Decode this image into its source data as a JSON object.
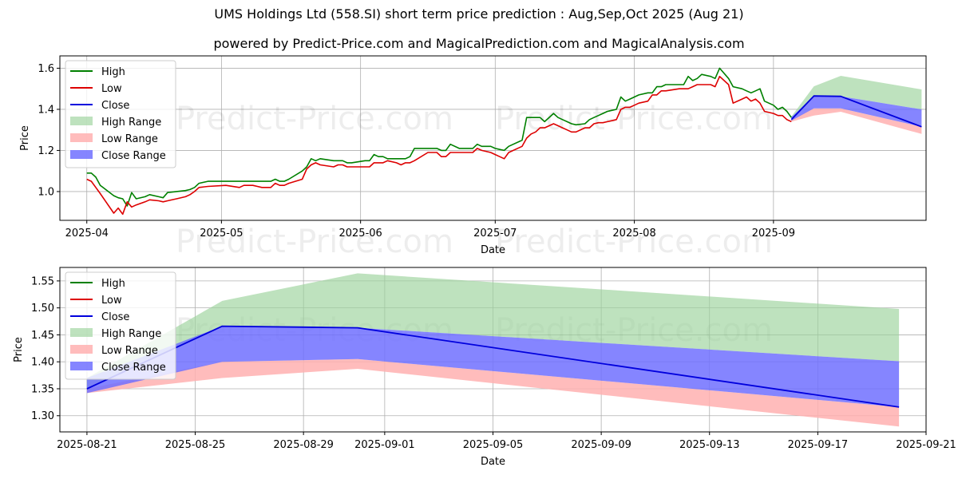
{
  "title": "UMS Holdings Ltd (558.SI) short term price prediction : Aug,Sep,Oct 2025 (Aug 21)",
  "subtitle": "powered by Predict-Price.com and MagicalPrediction.com and MagicalAnalysis.com",
  "watermark": "Predict-Price.com",
  "colors": {
    "high": "#008000",
    "low": "#dd0000",
    "close": "#0000dd",
    "high_range": "#9bd39b",
    "low_range": "#ffb0b0",
    "close_range": "#7070ff",
    "grid": "#b0b0b0"
  },
  "chart_data": [
    {
      "type": "line",
      "name": "history-and-forecast",
      "xlabel": "Date",
      "ylabel": "Price",
      "grid": true,
      "legend_position": "top-left",
      "xlim": [
        "2025-03-26",
        "2025-10-05"
      ],
      "ylim": [
        0.86,
        1.66
      ],
      "x_ticks": [
        "2025-04-01",
        "2025-05-01",
        "2025-06-01",
        "2025-07-01",
        "2025-08-01",
        "2025-09-01"
      ],
      "x_tick_labels": [
        "2025-04",
        "2025-05",
        "2025-06",
        "2025-07",
        "2025-08",
        "2025-09"
      ],
      "y_ticks": [
        1.0,
        1.2,
        1.4,
        1.6
      ],
      "y_tick_labels": [
        "1.0",
        "1.2",
        "1.4",
        "1.6"
      ],
      "legend": [
        "High",
        "Low",
        "Close",
        "High Range",
        "Low Range",
        "Close Range"
      ],
      "high": [
        [
          "2025-04-01",
          1.09
        ],
        [
          "2025-04-02",
          1.09
        ],
        [
          "2025-04-03",
          1.07
        ],
        [
          "2025-04-04",
          1.03
        ],
        [
          "2025-04-07",
          0.98
        ],
        [
          "2025-04-08",
          0.97
        ],
        [
          "2025-04-09",
          0.965
        ],
        [
          "2025-04-10",
          0.93
        ],
        [
          "2025-04-11",
          0.995
        ],
        [
          "2025-04-12",
          0.965
        ],
        [
          "2025-04-14",
          0.975
        ],
        [
          "2025-04-15",
          0.985
        ],
        [
          "2025-04-17",
          0.975
        ],
        [
          "2025-04-18",
          0.97
        ],
        [
          "2025-04-19",
          0.995
        ],
        [
          "2025-04-21",
          1.0
        ],
        [
          "2025-04-23",
          1.005
        ],
        [
          "2025-04-24",
          1.01
        ],
        [
          "2025-04-25",
          1.02
        ],
        [
          "2025-04-26",
          1.04
        ],
        [
          "2025-04-28",
          1.05
        ],
        [
          "2025-05-02",
          1.05
        ],
        [
          "2025-05-05",
          1.05
        ],
        [
          "2025-05-06",
          1.05
        ],
        [
          "2025-05-07",
          1.05
        ],
        [
          "2025-05-08",
          1.05
        ],
        [
          "2025-05-09",
          1.05
        ],
        [
          "2025-05-10",
          1.05
        ],
        [
          "2025-05-12",
          1.05
        ],
        [
          "2025-05-13",
          1.06
        ],
        [
          "2025-05-14",
          1.05
        ],
        [
          "2025-05-15",
          1.05
        ],
        [
          "2025-05-16",
          1.06
        ],
        [
          "2025-05-19",
          1.1
        ],
        [
          "2025-05-20",
          1.12
        ],
        [
          "2025-05-21",
          1.16
        ],
        [
          "2025-05-22",
          1.15
        ],
        [
          "2025-05-23",
          1.16
        ],
        [
          "2025-05-26",
          1.15
        ],
        [
          "2025-05-27",
          1.15
        ],
        [
          "2025-05-28",
          1.15
        ],
        [
          "2025-05-29",
          1.14
        ],
        [
          "2025-05-30",
          1.14
        ],
        [
          "2025-06-02",
          1.15
        ],
        [
          "2025-06-03",
          1.15
        ],
        [
          "2025-06-04",
          1.18
        ],
        [
          "2025-06-05",
          1.17
        ],
        [
          "2025-06-06",
          1.17
        ],
        [
          "2025-06-07",
          1.16
        ],
        [
          "2025-06-09",
          1.16
        ],
        [
          "2025-06-10",
          1.16
        ],
        [
          "2025-06-11",
          1.16
        ],
        [
          "2025-06-12",
          1.17
        ],
        [
          "2025-06-13",
          1.21
        ],
        [
          "2025-06-16",
          1.21
        ],
        [
          "2025-06-17",
          1.21
        ],
        [
          "2025-06-18",
          1.21
        ],
        [
          "2025-06-19",
          1.2
        ],
        [
          "2025-06-20",
          1.2
        ],
        [
          "2025-06-21",
          1.23
        ],
        [
          "2025-06-23",
          1.21
        ],
        [
          "2025-06-24",
          1.21
        ],
        [
          "2025-06-25",
          1.21
        ],
        [
          "2025-06-26",
          1.21
        ],
        [
          "2025-06-27",
          1.23
        ],
        [
          "2025-06-28",
          1.22
        ],
        [
          "2025-06-30",
          1.22
        ],
        [
          "2025-07-01",
          1.21
        ],
        [
          "2025-07-02",
          1.205
        ],
        [
          "2025-07-03",
          1.2
        ],
        [
          "2025-07-04",
          1.22
        ],
        [
          "2025-07-07",
          1.25
        ],
        [
          "2025-07-08",
          1.36
        ],
        [
          "2025-07-09",
          1.36
        ],
        [
          "2025-07-10",
          1.36
        ],
        [
          "2025-07-11",
          1.36
        ],
        [
          "2025-07-12",
          1.34
        ],
        [
          "2025-07-14",
          1.38
        ],
        [
          "2025-07-15",
          1.36
        ],
        [
          "2025-07-16",
          1.35
        ],
        [
          "2025-07-17",
          1.34
        ],
        [
          "2025-07-18",
          1.33
        ],
        [
          "2025-07-19",
          1.325
        ],
        [
          "2025-07-21",
          1.33
        ],
        [
          "2025-07-22",
          1.35
        ],
        [
          "2025-07-23",
          1.36
        ],
        [
          "2025-07-24",
          1.37
        ],
        [
          "2025-07-25",
          1.38
        ],
        [
          "2025-07-26",
          1.39
        ],
        [
          "2025-07-28",
          1.4
        ],
        [
          "2025-07-29",
          1.46
        ],
        [
          "2025-07-30",
          1.44
        ],
        [
          "2025-07-31",
          1.45
        ],
        [
          "2025-08-01",
          1.46
        ],
        [
          "2025-08-02",
          1.47
        ],
        [
          "2025-08-04",
          1.48
        ],
        [
          "2025-08-05",
          1.48
        ],
        [
          "2025-08-06",
          1.51
        ],
        [
          "2025-08-07",
          1.51
        ],
        [
          "2025-08-08",
          1.52
        ],
        [
          "2025-08-11",
          1.52
        ],
        [
          "2025-08-12",
          1.52
        ],
        [
          "2025-08-13",
          1.56
        ],
        [
          "2025-08-14",
          1.54
        ],
        [
          "2025-08-15",
          1.55
        ],
        [
          "2025-08-16",
          1.57
        ],
        [
          "2025-08-18",
          1.56
        ],
        [
          "2025-08-19",
          1.55
        ],
        [
          "2025-08-20",
          1.6
        ],
        [
          "2025-08-22",
          1.55
        ],
        [
          "2025-08-23",
          1.51
        ],
        [
          "2025-08-25",
          1.5
        ],
        [
          "2025-08-26",
          1.49
        ],
        [
          "2025-08-27",
          1.48
        ],
        [
          "2025-08-28",
          1.49
        ],
        [
          "2025-08-29",
          1.5
        ],
        [
          "2025-08-30",
          1.44
        ],
        [
          "2025-09-01",
          1.42
        ],
        [
          "2025-09-02",
          1.4
        ],
        [
          "2025-09-03",
          1.41
        ],
        [
          "2025-09-04",
          1.39
        ],
        [
          "2025-09-05",
          1.36
        ]
      ],
      "low": [
        [
          "2025-04-01",
          1.06
        ],
        [
          "2025-04-02",
          1.05
        ],
        [
          "2025-04-03",
          1.02
        ],
        [
          "2025-04-04",
          0.99
        ],
        [
          "2025-04-07",
          0.895
        ],
        [
          "2025-04-08",
          0.92
        ],
        [
          "2025-04-09",
          0.89
        ],
        [
          "2025-04-10",
          0.95
        ],
        [
          "2025-04-11",
          0.925
        ],
        [
          "2025-04-12",
          0.935
        ],
        [
          "2025-04-14",
          0.95
        ],
        [
          "2025-04-15",
          0.96
        ],
        [
          "2025-04-17",
          0.955
        ],
        [
          "2025-04-18",
          0.95
        ],
        [
          "2025-04-19",
          0.955
        ],
        [
          "2025-04-21",
          0.965
        ],
        [
          "2025-04-23",
          0.975
        ],
        [
          "2025-04-24",
          0.985
        ],
        [
          "2025-04-25",
          1.0
        ],
        [
          "2025-04-26",
          1.02
        ],
        [
          "2025-04-28",
          1.025
        ],
        [
          "2025-05-02",
          1.03
        ],
        [
          "2025-05-05",
          1.02
        ],
        [
          "2025-05-06",
          1.03
        ],
        [
          "2025-05-07",
          1.03
        ],
        [
          "2025-05-08",
          1.03
        ],
        [
          "2025-05-09",
          1.025
        ],
        [
          "2025-05-10",
          1.02
        ],
        [
          "2025-05-12",
          1.02
        ],
        [
          "2025-05-13",
          1.04
        ],
        [
          "2025-05-14",
          1.03
        ],
        [
          "2025-05-15",
          1.03
        ],
        [
          "2025-05-16",
          1.04
        ],
        [
          "2025-05-19",
          1.06
        ],
        [
          "2025-05-20",
          1.11
        ],
        [
          "2025-05-21",
          1.13
        ],
        [
          "2025-05-22",
          1.14
        ],
        [
          "2025-05-23",
          1.13
        ],
        [
          "2025-05-26",
          1.12
        ],
        [
          "2025-05-27",
          1.13
        ],
        [
          "2025-05-28",
          1.13
        ],
        [
          "2025-05-29",
          1.12
        ],
        [
          "2025-05-30",
          1.12
        ],
        [
          "2025-06-02",
          1.12
        ],
        [
          "2025-06-03",
          1.12
        ],
        [
          "2025-06-04",
          1.14
        ],
        [
          "2025-06-05",
          1.14
        ],
        [
          "2025-06-06",
          1.14
        ],
        [
          "2025-06-07",
          1.15
        ],
        [
          "2025-06-09",
          1.14
        ],
        [
          "2025-06-10",
          1.13
        ],
        [
          "2025-06-11",
          1.14
        ],
        [
          "2025-06-12",
          1.14
        ],
        [
          "2025-06-13",
          1.15
        ],
        [
          "2025-06-16",
          1.19
        ],
        [
          "2025-06-17",
          1.19
        ],
        [
          "2025-06-18",
          1.19
        ],
        [
          "2025-06-19",
          1.17
        ],
        [
          "2025-06-20",
          1.17
        ],
        [
          "2025-06-21",
          1.19
        ],
        [
          "2025-06-23",
          1.19
        ],
        [
          "2025-06-24",
          1.19
        ],
        [
          "2025-06-25",
          1.19
        ],
        [
          "2025-06-26",
          1.19
        ],
        [
          "2025-06-27",
          1.21
        ],
        [
          "2025-06-28",
          1.2
        ],
        [
          "2025-06-30",
          1.19
        ],
        [
          "2025-07-01",
          1.18
        ],
        [
          "2025-07-02",
          1.17
        ],
        [
          "2025-07-03",
          1.16
        ],
        [
          "2025-07-04",
          1.19
        ],
        [
          "2025-07-07",
          1.22
        ],
        [
          "2025-07-08",
          1.26
        ],
        [
          "2025-07-09",
          1.28
        ],
        [
          "2025-07-10",
          1.29
        ],
        [
          "2025-07-11",
          1.31
        ],
        [
          "2025-07-12",
          1.31
        ],
        [
          "2025-07-14",
          1.33
        ],
        [
          "2025-07-15",
          1.32
        ],
        [
          "2025-07-16",
          1.31
        ],
        [
          "2025-07-17",
          1.3
        ],
        [
          "2025-07-18",
          1.29
        ],
        [
          "2025-07-19",
          1.29
        ],
        [
          "2025-07-21",
          1.31
        ],
        [
          "2025-07-22",
          1.31
        ],
        [
          "2025-07-23",
          1.33
        ],
        [
          "2025-07-24",
          1.335
        ],
        [
          "2025-07-25",
          1.335
        ],
        [
          "2025-07-26",
          1.34
        ],
        [
          "2025-07-28",
          1.35
        ],
        [
          "2025-07-29",
          1.4
        ],
        [
          "2025-07-30",
          1.41
        ],
        [
          "2025-07-31",
          1.41
        ],
        [
          "2025-08-01",
          1.42
        ],
        [
          "2025-08-02",
          1.43
        ],
        [
          "2025-08-04",
          1.44
        ],
        [
          "2025-08-05",
          1.47
        ],
        [
          "2025-08-06",
          1.47
        ],
        [
          "2025-08-07",
          1.49
        ],
        [
          "2025-08-08",
          1.49
        ],
        [
          "2025-08-11",
          1.5
        ],
        [
          "2025-08-12",
          1.5
        ],
        [
          "2025-08-13",
          1.5
        ],
        [
          "2025-08-14",
          1.51
        ],
        [
          "2025-08-15",
          1.52
        ],
        [
          "2025-08-16",
          1.52
        ],
        [
          "2025-08-18",
          1.52
        ],
        [
          "2025-08-19",
          1.51
        ],
        [
          "2025-08-20",
          1.56
        ],
        [
          "2025-08-22",
          1.52
        ],
        [
          "2025-08-23",
          1.43
        ],
        [
          "2025-08-25",
          1.45
        ],
        [
          "2025-08-26",
          1.46
        ],
        [
          "2025-08-27",
          1.44
        ],
        [
          "2025-08-28",
          1.45
        ],
        [
          "2025-08-29",
          1.43
        ],
        [
          "2025-08-30",
          1.39
        ],
        [
          "2025-09-01",
          1.38
        ],
        [
          "2025-09-02",
          1.37
        ],
        [
          "2025-09-03",
          1.37
        ],
        [
          "2025-09-04",
          1.35
        ],
        [
          "2025-09-05",
          1.34
        ]
      ],
      "forecast_close": [
        [
          "2025-09-05",
          1.35
        ],
        [
          "2025-09-10",
          1.465
        ],
        [
          "2025-09-16",
          1.463
        ],
        [
          "2025-10-04",
          1.315
        ]
      ],
      "high_range": {
        "x": [
          "2025-09-05",
          "2025-09-10",
          "2025-09-16",
          "2025-10-04"
        ],
        "upper": [
          1.365,
          1.512,
          1.563,
          1.497
        ],
        "lower": [
          1.35,
          1.465,
          1.463,
          1.4
        ]
      },
      "low_range": {
        "x": [
          "2025-09-05",
          "2025-09-10",
          "2025-09-16",
          "2025-10-04"
        ],
        "upper": [
          1.35,
          1.405,
          1.405,
          1.315
        ],
        "lower": [
          1.34,
          1.37,
          1.388,
          1.28
        ]
      },
      "close_range": {
        "x": [
          "2025-09-05",
          "2025-09-10",
          "2025-09-16",
          "2025-10-04"
        ],
        "upper": [
          1.362,
          1.465,
          1.463,
          1.4
        ],
        "lower": [
          1.345,
          1.405,
          1.405,
          1.315
        ]
      }
    },
    {
      "type": "line",
      "name": "forecast-zoom",
      "xlabel": "Date",
      "ylabel": "Price",
      "grid": true,
      "legend_position": "top-left",
      "xlim": [
        "2025-08-20",
        "2025-09-21"
      ],
      "ylim": [
        1.27,
        1.575
      ],
      "x_ticks": [
        "2025-08-21",
        "2025-08-25",
        "2025-08-29",
        "2025-09-01",
        "2025-09-05",
        "2025-09-09",
        "2025-09-13",
        "2025-09-17",
        "2025-09-21"
      ],
      "x_tick_labels": [
        "2025-08-21",
        "2025-08-25",
        "2025-08-29",
        "2025-09-01",
        "2025-09-05",
        "2025-09-09",
        "2025-09-13",
        "2025-09-17",
        "2025-09-21"
      ],
      "y_ticks": [
        1.3,
        1.35,
        1.4,
        1.45,
        1.5,
        1.55
      ],
      "y_tick_labels": [
        "1.30",
        "1.35",
        "1.40",
        "1.45",
        "1.50",
        "1.55"
      ],
      "legend": [
        "High",
        "Low",
        "Close",
        "High Range",
        "Low Range",
        "Close Range"
      ],
      "forecast_close": [
        [
          "2025-08-21",
          1.35
        ],
        [
          "2025-08-26",
          1.466
        ],
        [
          "2025-08-31",
          1.463
        ],
        [
          "2025-09-20",
          1.316
        ]
      ],
      "high_range": {
        "x": [
          "2025-08-21",
          "2025-08-26",
          "2025-08-31",
          "2025-09-20"
        ],
        "upper": [
          1.37,
          1.513,
          1.564,
          1.498
        ],
        "lower": [
          1.35,
          1.466,
          1.463,
          1.401
        ]
      },
      "low_range": {
        "x": [
          "2025-08-21",
          "2025-08-26",
          "2025-08-31",
          "2025-09-20"
        ],
        "upper": [
          1.35,
          1.4,
          1.405,
          1.316
        ],
        "lower": [
          1.342,
          1.37,
          1.387,
          1.28
        ]
      },
      "close_range": {
        "x": [
          "2025-08-21",
          "2025-08-26",
          "2025-08-31",
          "2025-09-20"
        ],
        "upper": [
          1.37,
          1.466,
          1.463,
          1.401
        ],
        "lower": [
          1.342,
          1.4,
          1.405,
          1.316
        ]
      }
    }
  ]
}
